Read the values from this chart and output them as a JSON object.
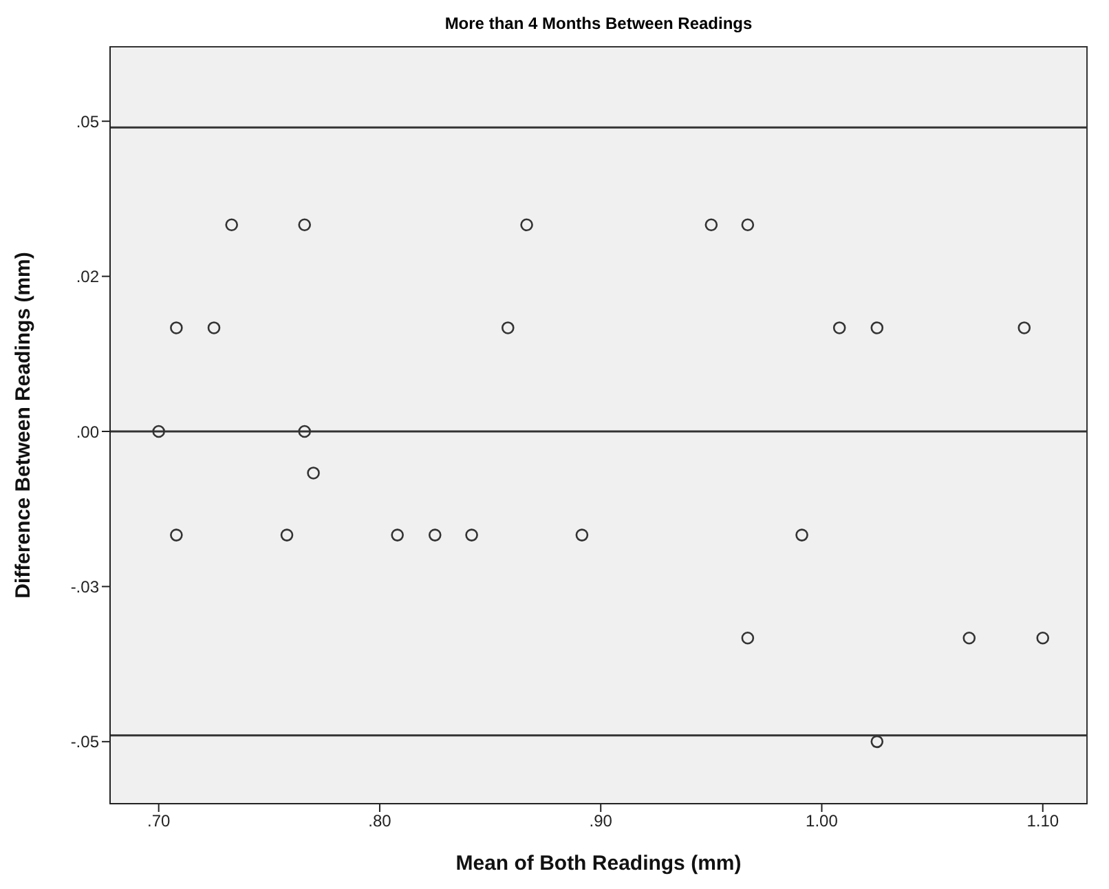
{
  "chart_data": {
    "type": "scatter",
    "title": "More than 4 Months Between Readings",
    "xlabel": "Mean of Both Readings (mm)",
    "ylabel": "Difference Between Readings (mm)",
    "series": [
      {
        "color": "#333333",
        "x": [
          0.733,
          0.766,
          0.8665,
          0.95,
          0.9665,
          0.708,
          0.725,
          0.858,
          1.008,
          1.025,
          1.0916,
          0.7,
          0.766,
          0.77,
          0.708,
          0.758,
          0.808,
          0.825,
          0.8416,
          0.8915,
          0.991,
          0.9665,
          1.0667,
          1.1,
          1.025
        ],
        "values": [
          0.0333,
          0.0333,
          0.0333,
          0.0333,
          0.0333,
          0.0167,
          0.0167,
          0.0167,
          0.0167,
          0.0167,
          0.0167,
          0,
          0,
          -0.0067,
          -0.0167,
          -0.0167,
          -0.0167,
          -0.0167,
          -0.0167,
          -0.0167,
          -0.0167,
          -0.0333,
          -0.0333,
          -0.0333,
          -0.05
        ]
      }
    ],
    "marker": "circle",
    "xlim": [
      0.678,
      1.12
    ],
    "xticks": [
      {
        "value": 0.7,
        "label": ".70"
      },
      {
        "value": 0.8,
        "label": ".80"
      },
      {
        "value": 0.9,
        "label": ".90"
      },
      {
        "value": 1.0,
        "label": "1.00"
      },
      {
        "value": 1.1,
        "label": "1.10"
      }
    ],
    "ylim": [
      -0.06,
      0.062
    ],
    "yticks": [
      {
        "value": -0.05,
        "label": "-.05"
      },
      {
        "value": -0.025,
        "label": "-.03"
      },
      {
        "value": 0,
        "label": ".00"
      },
      {
        "value": 0.025,
        "label": ".02"
      },
      {
        "value": 0.05,
        "label": ".05"
      }
    ],
    "ref_lines": [
      {
        "axis": "y",
        "value": 0.049,
        "color": "#333333"
      },
      {
        "axis": "y",
        "value": 0,
        "color": "#333333"
      },
      {
        "axis": "y",
        "value": -0.049,
        "color": "#333333"
      }
    ]
  }
}
